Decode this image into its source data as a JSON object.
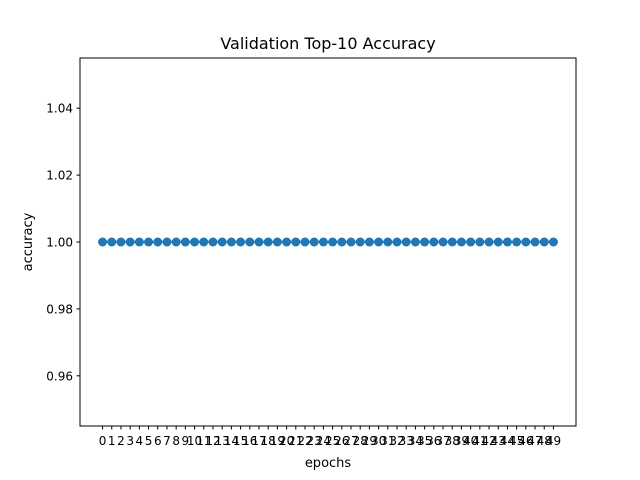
{
  "chart_data": {
    "type": "scatter",
    "title": "Validation Top-10 Accuracy",
    "xlabel": "epochs",
    "ylabel": "accuracy",
    "x": [
      0,
      1,
      2,
      3,
      4,
      5,
      6,
      7,
      8,
      9,
      10,
      11,
      12,
      13,
      14,
      15,
      16,
      17,
      18,
      19,
      20,
      21,
      22,
      23,
      24,
      25,
      26,
      27,
      28,
      29,
      30,
      31,
      32,
      33,
      34,
      35,
      36,
      37,
      38,
      39,
      40,
      41,
      42,
      43,
      44,
      45,
      46,
      47,
      48,
      49
    ],
    "xticklabels": [
      "0",
      "1",
      "2",
      "3",
      "4",
      "5",
      "6",
      "7",
      "8",
      "9",
      "10",
      "11",
      "12",
      "13",
      "14",
      "15",
      "16",
      "17",
      "18",
      "19",
      "20",
      "21",
      "22",
      "23",
      "24",
      "25",
      "26",
      "27",
      "28",
      "29",
      "30",
      "31",
      "32",
      "33",
      "34",
      "35",
      "36",
      "37",
      "38",
      "39",
      "40",
      "41",
      "42",
      "43",
      "44",
      "45",
      "46",
      "47",
      "48",
      "49"
    ],
    "series": [
      {
        "values": [
          1,
          1,
          1,
          1,
          1,
          1,
          1,
          1,
          1,
          1,
          1,
          1,
          1,
          1,
          1,
          1,
          1,
          1,
          1,
          1,
          1,
          1,
          1,
          1,
          1,
          1,
          1,
          1,
          1,
          1,
          1,
          1,
          1,
          1,
          1,
          1,
          1,
          1,
          1,
          1,
          1,
          1,
          1,
          1,
          1,
          1,
          1,
          1,
          1,
          1
        ],
        "color": "#1f77b4",
        "line": true,
        "markers": true
      }
    ],
    "xlim": [
      -2.45,
      51.45
    ],
    "ylim": [
      0.945,
      1.055
    ],
    "yticks": [
      0.96,
      0.98,
      1.0,
      1.02,
      1.04
    ],
    "yticklabels": [
      "0.96",
      "0.98",
      "1.00",
      "1.02",
      "1.04"
    ],
    "grid": false,
    "legend": "none"
  }
}
